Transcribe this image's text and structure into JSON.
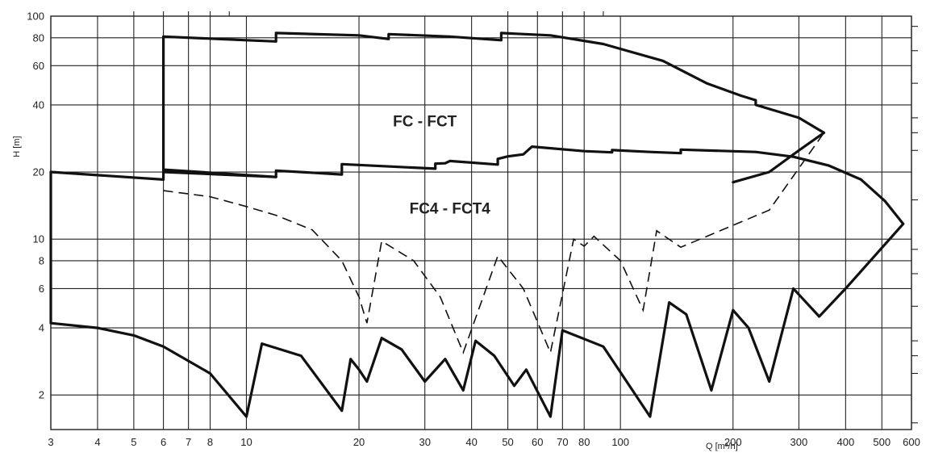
{
  "chart_data": {
    "type": "line",
    "title": "",
    "xlabel": "Q [m³/h]",
    "ylabel": "H [m]",
    "xscale": "log",
    "yscale": "log",
    "xlim": [
      3,
      600
    ],
    "ylim": [
      1.4,
      100
    ],
    "grid": true,
    "x_ticks": [
      3,
      4,
      5,
      6,
      7,
      8,
      10,
      20,
      30,
      40,
      50,
      60,
      70,
      80,
      100,
      200,
      300,
      400,
      500,
      600
    ],
    "y_ticks": [
      2,
      4,
      6,
      8,
      10,
      20,
      40,
      60,
      80,
      100
    ],
    "region_labels": [
      {
        "text": "FC - FCT",
        "x": 30,
        "y": 32
      },
      {
        "text": "FC4 - FCT4",
        "x": 35,
        "y": 13
      }
    ],
    "series": [
      {
        "style": "solid",
        "points": [
          [
            6,
            81
          ],
          [
            10,
            78
          ],
          [
            12,
            77
          ],
          [
            12,
            84
          ],
          [
            20,
            82
          ],
          [
            24,
            79
          ],
          [
            24,
            83
          ],
          [
            35,
            81
          ],
          [
            48,
            78
          ],
          [
            48,
            84
          ],
          [
            65,
            82
          ],
          [
            90,
            75
          ],
          [
            130,
            63
          ],
          [
            170,
            50
          ],
          [
            210,
            44
          ],
          [
            230,
            42
          ],
          [
            230,
            40
          ],
          [
            300,
            35
          ],
          [
            350,
            30
          ],
          [
            300,
            25
          ],
          [
            250,
            20
          ],
          [
            200,
            18
          ]
        ]
      },
      {
        "style": "solid",
        "points": [
          [
            6,
            80.5
          ],
          [
            6,
            20
          ],
          [
            12,
            19
          ],
          [
            12,
            20.3
          ],
          [
            18,
            19.5
          ],
          [
            18,
            21.7
          ],
          [
            32,
            20.7
          ],
          [
            32,
            21.8
          ],
          [
            34,
            21.9
          ],
          [
            35,
            22.4
          ],
          [
            47,
            21.6
          ],
          [
            47,
            22.9
          ],
          [
            50,
            23.5
          ],
          [
            55,
            24
          ],
          [
            58,
            26
          ],
          [
            80,
            24.8
          ],
          [
            95,
            24.5
          ],
          [
            95,
            25.1
          ],
          [
            120,
            24.6
          ],
          [
            145,
            24.3
          ],
          [
            145,
            25.2
          ],
          [
            230,
            24.6
          ],
          [
            290,
            23.4
          ],
          [
            360,
            21.4
          ],
          [
            440,
            18.5
          ],
          [
            510,
            14.8
          ],
          [
            570,
            11.7
          ]
        ]
      },
      {
        "style": "solid",
        "points": [
          [
            3,
            20
          ],
          [
            6,
            18.5
          ],
          [
            6,
            20.5
          ],
          [
            12,
            19
          ]
        ]
      },
      {
        "style": "solid",
        "points": [
          [
            3,
            20
          ],
          [
            3,
            4.2
          ],
          [
            4,
            4.0
          ],
          [
            5,
            3.7
          ],
          [
            6,
            3.3
          ],
          [
            8,
            2.5
          ],
          [
            10,
            1.6
          ],
          [
            11,
            3.4
          ],
          [
            14,
            3.0
          ],
          [
            18,
            1.7
          ],
          [
            19,
            2.9
          ],
          [
            20,
            2.6
          ],
          [
            21,
            2.3
          ],
          [
            23,
            3.6
          ],
          [
            26,
            3.2
          ],
          [
            30,
            2.3
          ],
          [
            34,
            2.9
          ],
          [
            38,
            2.1
          ],
          [
            41,
            3.5
          ],
          [
            46,
            3.0
          ],
          [
            52,
            2.2
          ],
          [
            56,
            2.6
          ],
          [
            65,
            1.6
          ],
          [
            70,
            3.9
          ],
          [
            90,
            3.3
          ],
          [
            120,
            1.6
          ],
          [
            135,
            5.2
          ],
          [
            150,
            4.6
          ],
          [
            175,
            2.1
          ],
          [
            200,
            4.8
          ],
          [
            220,
            4.0
          ],
          [
            250,
            2.3
          ],
          [
            290,
            6.0
          ],
          [
            340,
            4.5
          ],
          [
            400,
            6.0
          ],
          [
            570,
            11.7
          ]
        ]
      },
      {
        "style": "dashed",
        "points": [
          [
            6,
            16.5
          ],
          [
            8,
            15.5
          ],
          [
            10,
            14.0
          ],
          [
            12,
            12.8
          ],
          [
            15,
            11.0
          ],
          [
            18,
            8.0
          ],
          [
            20,
            5.5
          ],
          [
            21,
            4.2
          ],
          [
            23,
            9.8
          ],
          [
            28,
            8.0
          ],
          [
            33,
            5.5
          ],
          [
            38,
            3.1
          ],
          [
            47,
            8.4
          ],
          [
            55,
            6.0
          ],
          [
            65,
            3.1
          ],
          [
            75,
            10.0
          ],
          [
            80,
            9.3
          ],
          [
            85,
            10.3
          ],
          [
            100,
            8.0
          ],
          [
            115,
            4.8
          ],
          [
            125,
            10.9
          ],
          [
            145,
            9.2
          ],
          [
            250,
            13.5
          ],
          [
            350,
            30
          ]
        ]
      }
    ]
  }
}
